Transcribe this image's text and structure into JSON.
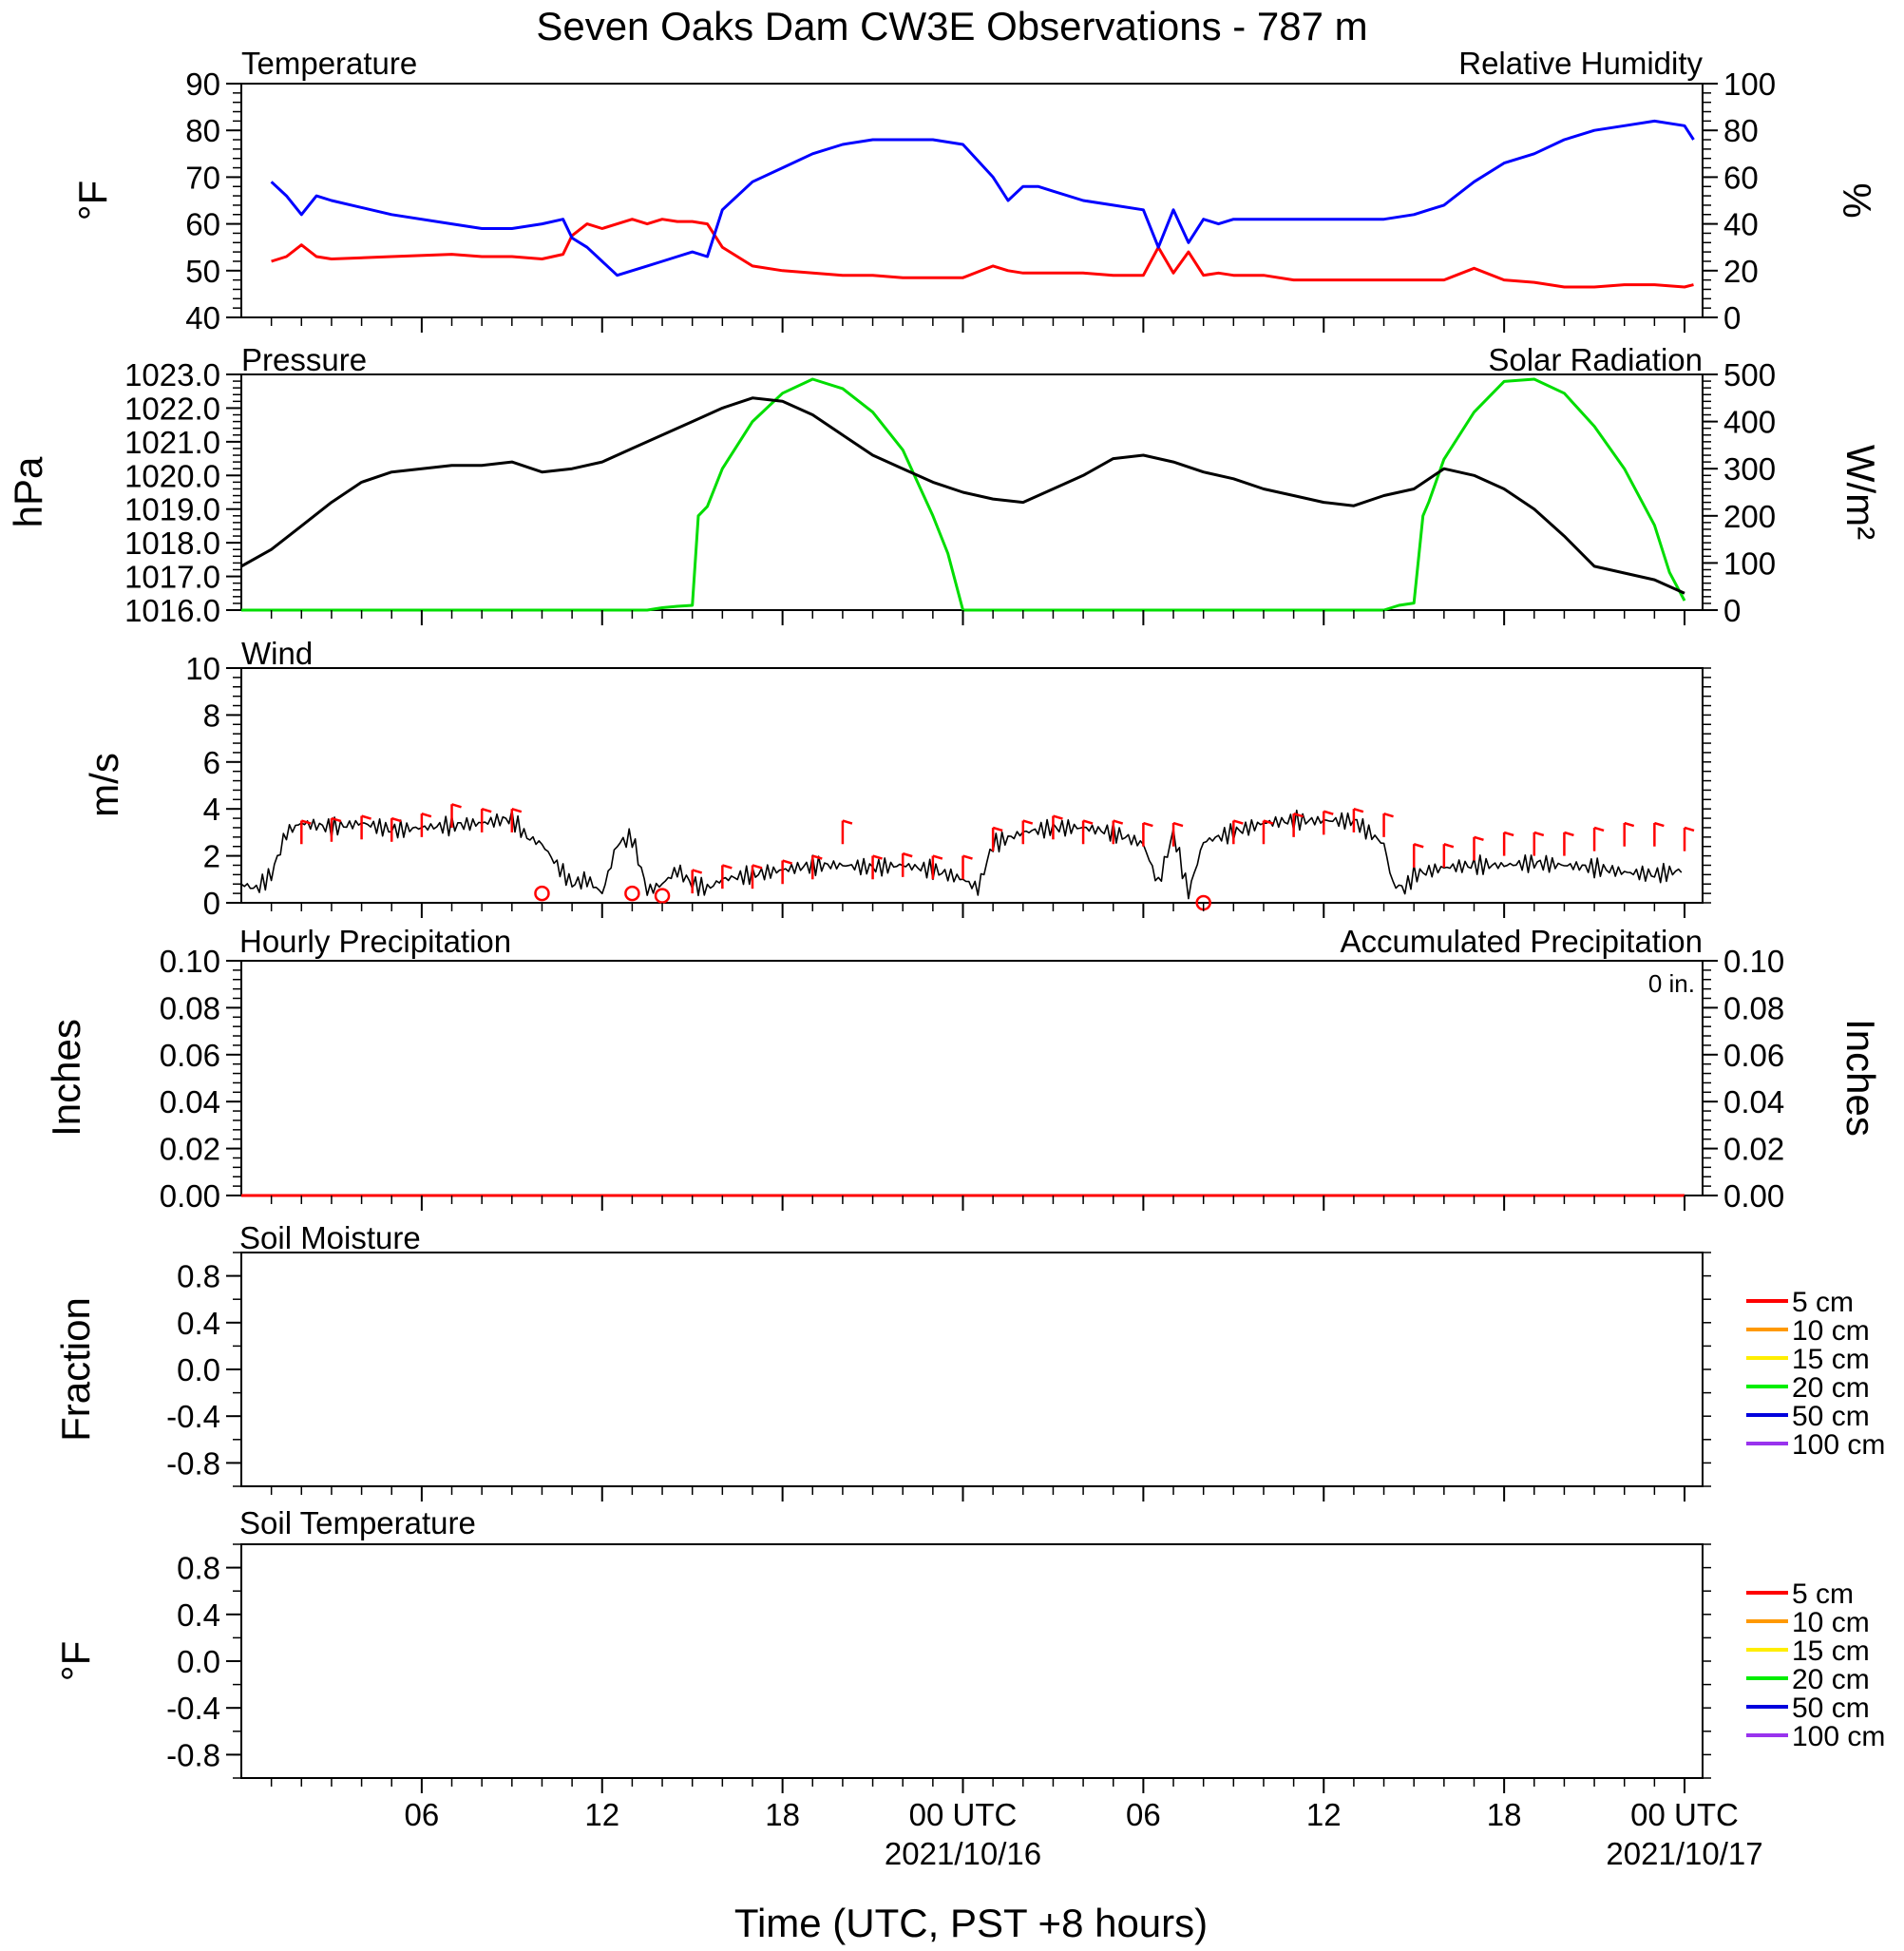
{
  "title": "Seven Oaks Dam CW3E Observations - 787 m",
  "xlabel": "Time (UTC, PST +8 hours)",
  "x_ticks": [
    {
      "label": "06",
      "hour": 6
    },
    {
      "label": "12",
      "hour": 12
    },
    {
      "label": "18",
      "hour": 18
    },
    {
      "label": "00 UTC",
      "date": "2021/10/16",
      "hour": 24
    },
    {
      "label": "06",
      "hour": 30
    },
    {
      "label": "12",
      "hour": 36
    },
    {
      "label": "18",
      "hour": 42
    },
    {
      "label": "00 UTC",
      "date": "2021/10/17",
      "hour": 48
    }
  ],
  "colors": {
    "temperature": "#0000ff",
    "humidity": "#ff0000",
    "pressure": "#000000",
    "solar": "#00dd00",
    "wind": "#000000",
    "barb": "#ff0000",
    "hourly_precip": "#0000ff",
    "accum_precip": "#ff0000"
  },
  "panels": {
    "temperature": {
      "left_title": "Temperature",
      "right_title": "Relative Humidity",
      "left_unit": "°F",
      "right_unit": "%",
      "left_ticks": [
        "40",
        "50",
        "60",
        "70",
        "80",
        "90"
      ],
      "right_ticks": [
        "0",
        "20",
        "40",
        "60",
        "80",
        "100"
      ]
    },
    "pressure": {
      "left_title": "Pressure",
      "right_title": "Solar Radiation",
      "left_unit": "hPa",
      "right_unit": "W/m²",
      "left_ticks": [
        "1016.0",
        "1017.0",
        "1018.0",
        "1019.0",
        "1020.0",
        "1021.0",
        "1022.0",
        "1023.0"
      ],
      "right_ticks": [
        "0",
        "100",
        "200",
        "300",
        "400",
        "500"
      ]
    },
    "wind": {
      "left_title": "Wind",
      "left_unit": "m/s",
      "left_ticks": [
        "0",
        "2",
        "4",
        "6",
        "8",
        "10"
      ]
    },
    "precip": {
      "left_title": "Hourly Precipitation",
      "right_title": "Accumulated Precipitation",
      "total": "0 in.",
      "left_unit": "Inches",
      "right_unit": "Inches",
      "left_ticks": [
        "0.00",
        "0.02",
        "0.04",
        "0.06",
        "0.08",
        "0.10"
      ],
      "right_ticks": [
        "0.00",
        "0.02",
        "0.04",
        "0.06",
        "0.08",
        "0.10"
      ]
    },
    "soil_moisture": {
      "left_title": "Soil Moisture",
      "left_unit": "Fraction",
      "left_ticks": [
        "-0.8",
        "-0.4",
        "0.0",
        "0.4",
        "0.8"
      ]
    },
    "soil_temperature": {
      "left_title": "Soil Temperature",
      "left_unit": "°F",
      "left_ticks": [
        "-0.8",
        "-0.4",
        "0.0",
        "0.4",
        "0.8"
      ]
    }
  },
  "soil_legend": [
    {
      "label": "5 cm",
      "color": "#ff0000"
    },
    {
      "label": "10 cm",
      "color": "#ff9900"
    },
    {
      "label": "15 cm",
      "color": "#ffee00"
    },
    {
      "label": "20 cm",
      "color": "#00ee00"
    },
    {
      "label": "50 cm",
      "color": "#0000dd"
    },
    {
      "label": "100 cm",
      "color": "#9933ee"
    }
  ],
  "chart_data": [
    {
      "type": "line",
      "ylabel": "°F",
      "ylim": [
        40,
        90
      ],
      "series": [
        {
          "name": "Temperature",
          "axis": "left",
          "x": [
            1,
            1.5,
            2,
            2.5,
            3,
            5,
            7,
            8,
            9,
            10,
            10.7,
            11,
            11.5,
            12,
            12.5,
            13,
            13.5,
            14,
            14.5,
            15,
            15.5,
            16,
            17,
            18,
            19,
            20,
            21,
            22,
            23,
            24,
            25,
            25.5,
            26,
            26.5,
            27,
            28,
            29,
            30,
            30.5,
            31,
            31.5,
            32,
            32.5,
            33,
            34,
            35,
            36,
            37,
            38,
            39,
            39.5,
            40,
            41,
            42,
            43,
            44,
            45,
            46,
            47,
            48,
            48.3
          ],
          "y": [
            69,
            66,
            62,
            66,
            65,
            62,
            60,
            59,
            59,
            60,
            61,
            57,
            55,
            52,
            49,
            50,
            51,
            52,
            53,
            54,
            53,
            63,
            69,
            72,
            75,
            77,
            78,
            78,
            78,
            77,
            70,
            65,
            68,
            68,
            67,
            65,
            64,
            63,
            55,
            63,
            56,
            61,
            60,
            61,
            61,
            61,
            61,
            61,
            61,
            62,
            63,
            64,
            69,
            73,
            75,
            78,
            80,
            81,
            82,
            81,
            78
          ]
        },
        {
          "name": "Relative Humidity",
          "axis": "right",
          "ylim": [
            0,
            100
          ],
          "x": [
            1,
            1.5,
            2,
            2.5,
            3,
            5,
            7,
            8,
            9,
            10,
            10.7,
            11,
            11.5,
            12,
            12.5,
            13,
            13.5,
            14,
            14.5,
            15,
            15.5,
            16,
            17,
            18,
            19,
            20,
            21,
            22,
            23,
            24,
            25,
            25.5,
            26,
            26.5,
            27,
            28,
            29,
            30,
            30.5,
            31,
            31.5,
            32,
            32.5,
            33,
            34,
            35,
            36,
            37,
            38,
            39,
            39.5,
            40,
            41,
            42,
            43,
            44,
            45,
            46,
            47,
            48,
            48.3
          ],
          "y": [
            24,
            26,
            31,
            26,
            25,
            26,
            27,
            26,
            26,
            25,
            27,
            35,
            40,
            38,
            40,
            42,
            40,
            42,
            41,
            41,
            40,
            30,
            22,
            20,
            19,
            18,
            18,
            17,
            17,
            17,
            22,
            20,
            19,
            19,
            19,
            19,
            18,
            18,
            30,
            19,
            28,
            18,
            19,
            18,
            18,
            16,
            16,
            16,
            16,
            16,
            16,
            16,
            21,
            16,
            15,
            13,
            13,
            14,
            14,
            13,
            14
          ]
        }
      ]
    },
    {
      "type": "line",
      "ylabel": "hPa",
      "ylim": [
        1016,
        1023
      ],
      "series": [
        {
          "name": "Pressure",
          "axis": "left",
          "x": [
            0,
            1,
            2,
            3,
            4,
            5,
            6,
            7,
            8,
            9,
            10,
            11,
            12,
            13,
            14,
            15,
            16,
            17,
            18,
            19,
            20,
            21,
            22,
            23,
            24,
            25,
            26,
            27,
            28,
            29,
            30,
            31,
            32,
            33,
            34,
            35,
            36,
            37,
            38,
            39,
            40,
            41,
            42,
            43,
            44,
            45,
            46,
            47,
            48
          ],
          "y": [
            1017.3,
            1017.8,
            1018.5,
            1019.2,
            1019.8,
            1020.1,
            1020.2,
            1020.3,
            1020.3,
            1020.4,
            1020.1,
            1020.2,
            1020.4,
            1020.8,
            1021.2,
            1021.6,
            1022.0,
            1022.3,
            1022.2,
            1021.8,
            1021.2,
            1020.6,
            1020.2,
            1019.8,
            1019.5,
            1019.3,
            1019.2,
            1019.6,
            1020.0,
            1020.5,
            1020.6,
            1020.4,
            1020.1,
            1019.9,
            1019.6,
            1019.4,
            1019.2,
            1019.1,
            1019.4,
            1019.6,
            1020.2,
            1020.0,
            1019.6,
            1019.0,
            1018.2,
            1017.3,
            1017.1,
            1016.9,
            1016.5
          ]
        },
        {
          "name": "Solar Radiation",
          "axis": "right",
          "ylim": [
            0,
            500
          ],
          "x": [
            0,
            13.5,
            14,
            14.5,
            15,
            15.2,
            15.5,
            16,
            17,
            18,
            19,
            20,
            21,
            22,
            23,
            23.5,
            24,
            25,
            38,
            38.5,
            39,
            39.3,
            39.5,
            40,
            41,
            42,
            43,
            44,
            45,
            46,
            47,
            47.5,
            48
          ],
          "y": [
            0,
            0,
            5,
            8,
            10,
            200,
            220,
            300,
            400,
            460,
            490,
            470,
            420,
            340,
            200,
            120,
            0,
            0,
            0,
            10,
            15,
            200,
            230,
            320,
            420,
            485,
            490,
            460,
            390,
            300,
            180,
            80,
            20
          ]
        }
      ]
    },
    {
      "type": "line",
      "ylabel": "m/s",
      "ylim": [
        0,
        10
      ],
      "series": [
        {
          "name": "Wind",
          "x": [
            0,
            0.5,
            1,
            1.5,
            2,
            3,
            4,
            5,
            6,
            7,
            8,
            9,
            9.5,
            10,
            10.5,
            11,
            11.5,
            12,
            12.5,
            13,
            13.5,
            14,
            14.5,
            15,
            15.5,
            16,
            17,
            18,
            19,
            20,
            21,
            22,
            23,
            24,
            24.5,
            25,
            26,
            27,
            28,
            29,
            30,
            30.5,
            31,
            31.5,
            32,
            33,
            34,
            35,
            36,
            37,
            38,
            38.3,
            38.7,
            39,
            40,
            41,
            42,
            43,
            44,
            45,
            46,
            47,
            48
          ],
          "y": [
            0.8,
            0.6,
            1.2,
            3.0,
            3.4,
            3.2,
            3.4,
            3.1,
            3.2,
            3.3,
            3.4,
            3.6,
            2.8,
            2.5,
            1.6,
            0.8,
            1.0,
            0.4,
            2.5,
            2.8,
            0.5,
            0.8,
            1.4,
            0.8,
            0.6,
            1.0,
            1.2,
            1.4,
            1.6,
            1.6,
            1.5,
            1.6,
            1.4,
            1.0,
            0.6,
            2.5,
            3.0,
            3.2,
            3.2,
            3.0,
            2.5,
            0.8,
            3.0,
            0.4,
            2.6,
            3.0,
            3.4,
            3.5,
            3.5,
            3.5,
            2.5,
            0.8,
            0.6,
            1.2,
            1.5,
            1.6,
            1.6,
            1.7,
            1.6,
            1.5,
            1.3,
            1.2,
            1.4
          ]
        },
        {
          "name": "calm",
          "type": "scatter",
          "x": [
            10,
            13,
            14,
            32
          ],
          "y": [
            0.4,
            0.4,
            0.3,
            0
          ]
        },
        {
          "name": "barbs",
          "x": [
            2,
            3,
            4,
            5,
            6,
            7,
            8,
            9,
            15,
            16,
            17,
            18,
            19,
            20,
            21,
            22,
            23,
            24,
            25,
            26,
            27,
            28,
            29,
            30,
            31,
            33,
            34,
            35,
            36,
            37,
            38,
            39,
            40,
            41,
            42,
            43,
            44,
            45,
            46,
            47,
            48
          ],
          "y": [
            3.5,
            3.6,
            3.7,
            3.6,
            3.8,
            4.2,
            4.0,
            4.0,
            1.4,
            1.6,
            1.6,
            1.8,
            2.0,
            3.5,
            2.0,
            2.1,
            2.0,
            2.0,
            3.2,
            3.5,
            3.7,
            3.5,
            3.5,
            3.4,
            3.4,
            3.5,
            3.5,
            3.8,
            3.9,
            4.0,
            3.8,
            2.5,
            2.5,
            2.8,
            3.0,
            3.0,
            3.0,
            3.2,
            3.4,
            3.4,
            3.2
          ]
        }
      ]
    },
    {
      "type": "bar",
      "ylabel": "Inches",
      "ylim": [
        0,
        0.1
      ],
      "series": [
        {
          "name": "Hourly Precipitation",
          "axis": "left",
          "x": [
            0,
            48
          ],
          "y": [
            0,
            0
          ]
        },
        {
          "name": "Accumulated Precipitation",
          "axis": "right",
          "x": [
            0,
            48
          ],
          "y": [
            0,
            0
          ]
        }
      ]
    },
    {
      "type": "line",
      "ylabel": "Fraction",
      "ylim": [
        -1,
        1
      ],
      "series": []
    },
    {
      "type": "line",
      "ylabel": "°F",
      "ylim": [
        -1,
        1
      ],
      "series": []
    }
  ]
}
